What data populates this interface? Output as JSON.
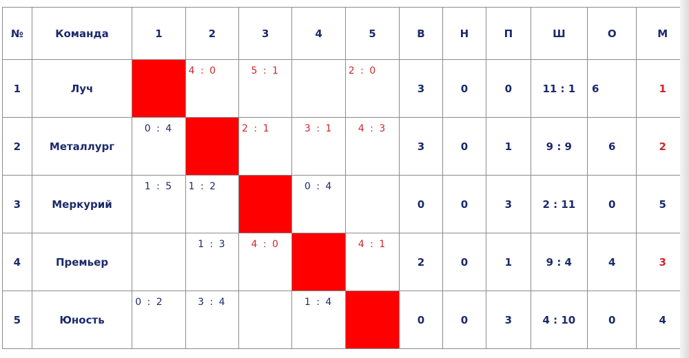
{
  "table": {
    "header": [
      "№",
      "Команда",
      "1",
      "2",
      "3",
      "4",
      "5",
      "В",
      "Н",
      "П",
      "Ш",
      "О",
      "М"
    ],
    "rows": [
      [
        "1",
        "Луч",
        null,
        "4 : 0",
        "5 : 1",
        null,
        "2 : 0",
        "3",
        "0",
        "0",
        "11 : 1",
        "6",
        "1"
      ],
      [
        "2",
        "Металлург",
        "0 : 4",
        null,
        "2 : 1",
        "3 : 1",
        "4 : 3",
        "3",
        "0",
        "1",
        "9 : 9",
        "6",
        "2"
      ],
      [
        "3",
        "Меркурий",
        "1 : 5",
        "1 : 2",
        null,
        "0 : 4",
        null,
        "0",
        "0",
        "3",
        "2 : 11",
        "0",
        "5"
      ],
      [
        "4",
        "Премьер",
        null,
        "1 : 3",
        "4 : 0",
        null,
        "4 : 1",
        "2",
        "0",
        "1",
        "9 : 4",
        "4",
        "3"
      ],
      [
        "5",
        "Юность",
        "0 : 2",
        "3 : 4",
        null,
        "1 : 4",
        null,
        "0",
        "0",
        "3",
        "4 : 10",
        "0",
        "4"
      ]
    ]
  }
}
